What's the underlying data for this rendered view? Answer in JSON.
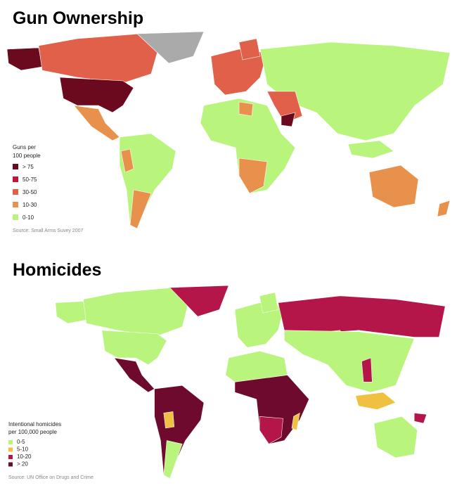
{
  "maps": [
    {
      "title": "Gun Ownership",
      "legend": {
        "title": [
          "Guns per",
          "100 people"
        ],
        "items": [
          {
            "label": "> 75",
            "color": "#6b0a1e"
          },
          {
            "label": "50-75",
            "color": "#c0163e"
          },
          {
            "label": "30-50",
            "color": "#e0604a"
          },
          {
            "label": "10-30",
            "color": "#e8914c"
          },
          {
            "label": "0-10",
            "color": "#b9f47c"
          }
        ]
      },
      "source": "Source: Small Arms Suvey 2007"
    },
    {
      "title": "Homicides",
      "legend": {
        "title": [
          "Intentional homicides",
          "per 100,000 people"
        ],
        "items": [
          {
            "label": "0-5",
            "color": "#b9f47c"
          },
          {
            "label": "5-10",
            "color": "#f0c040"
          },
          {
            "label": "10-20",
            "color": "#b5164a"
          },
          {
            "label": "> 20",
            "color": "#6d0a2e"
          }
        ]
      },
      "source": "Source: UN Office on Drugs and Crime"
    }
  ]
}
